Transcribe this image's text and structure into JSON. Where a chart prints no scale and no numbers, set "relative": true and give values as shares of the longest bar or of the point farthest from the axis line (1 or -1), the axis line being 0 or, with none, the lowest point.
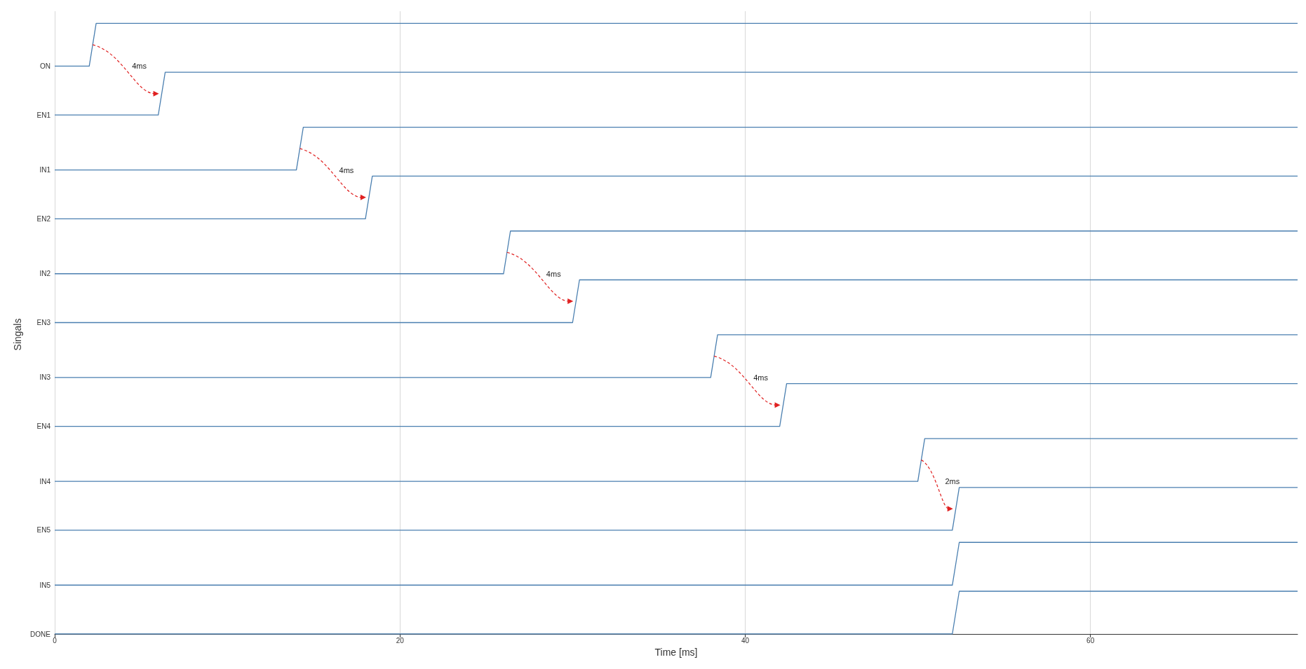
{
  "chart_data": {
    "type": "line",
    "relative": true,
    "xlabel": "Time [ms]",
    "ylabel": "Singals",
    "xlim": [
      0,
      72
    ],
    "xticks": [
      0,
      20,
      40,
      60
    ],
    "grid": "x",
    "marker": "none",
    "series": [
      {
        "name": "ON",
        "color": "#4a7fb0",
        "x": [
          0,
          2,
          2.4,
          72
        ],
        "values": [
          0.93,
          0.93,
          1,
          1
        ]
      },
      {
        "name": "EN1",
        "color": "#4a7fb0",
        "x": [
          0,
          6,
          6.4,
          72
        ],
        "values": [
          0.85,
          0.85,
          0.92,
          0.92
        ]
      },
      {
        "name": "IN1",
        "color": "#4a7fb0",
        "x": [
          0,
          14,
          14.4,
          72
        ],
        "values": [
          0.76,
          0.76,
          0.83,
          0.83
        ]
      },
      {
        "name": "EN2",
        "color": "#4a7fb0",
        "x": [
          0,
          18,
          18.4,
          72
        ],
        "values": [
          0.68,
          0.68,
          0.75,
          0.75
        ]
      },
      {
        "name": "IN2",
        "color": "#4a7fb0",
        "x": [
          0,
          26,
          26.4,
          72
        ],
        "values": [
          0.59,
          0.59,
          0.66,
          0.66
        ]
      },
      {
        "name": "EN3",
        "color": "#4a7fb0",
        "x": [
          0,
          30,
          30.4,
          72
        ],
        "values": [
          0.51,
          0.51,
          0.58,
          0.58
        ]
      },
      {
        "name": "IN3",
        "color": "#4a7fb0",
        "x": [
          0,
          38,
          38.4,
          72
        ],
        "values": [
          0.42,
          0.42,
          0.49,
          0.49
        ]
      },
      {
        "name": "EN4",
        "color": "#4a7fb0",
        "x": [
          0,
          42,
          42.4,
          72
        ],
        "values": [
          0.34,
          0.34,
          0.41,
          0.41
        ]
      },
      {
        "name": "IN4",
        "color": "#4a7fb0",
        "x": [
          0,
          50,
          50.4,
          72
        ],
        "values": [
          0.25,
          0.25,
          0.32,
          0.32
        ]
      },
      {
        "name": "EN5",
        "color": "#4a7fb0",
        "x": [
          0,
          52,
          52.4,
          72
        ],
        "values": [
          0.17,
          0.17,
          0.24,
          0.24
        ]
      },
      {
        "name": "IN5",
        "color": "#4a7fb0",
        "x": [
          0,
          52,
          52.4,
          72
        ],
        "values": [
          0.08,
          0.08,
          0.15,
          0.15
        ]
      },
      {
        "name": "DONE",
        "color": "#4a7fb0",
        "x": [
          0,
          52,
          52.4,
          72
        ],
        "values": [
          0,
          0,
          0.07,
          0.07
        ]
      }
    ],
    "annotations": [
      {
        "text": "4ms",
        "x": 4.9,
        "y": 0.93
      },
      {
        "text": "4ms",
        "x": 16.9,
        "y": 0.76
      },
      {
        "text": "4ms",
        "x": 28.9,
        "y": 0.59
      },
      {
        "text": "4ms",
        "x": 40.9,
        "y": 0.42
      },
      {
        "text": "2ms",
        "x": 52.0,
        "y": 0.25
      }
    ]
  }
}
